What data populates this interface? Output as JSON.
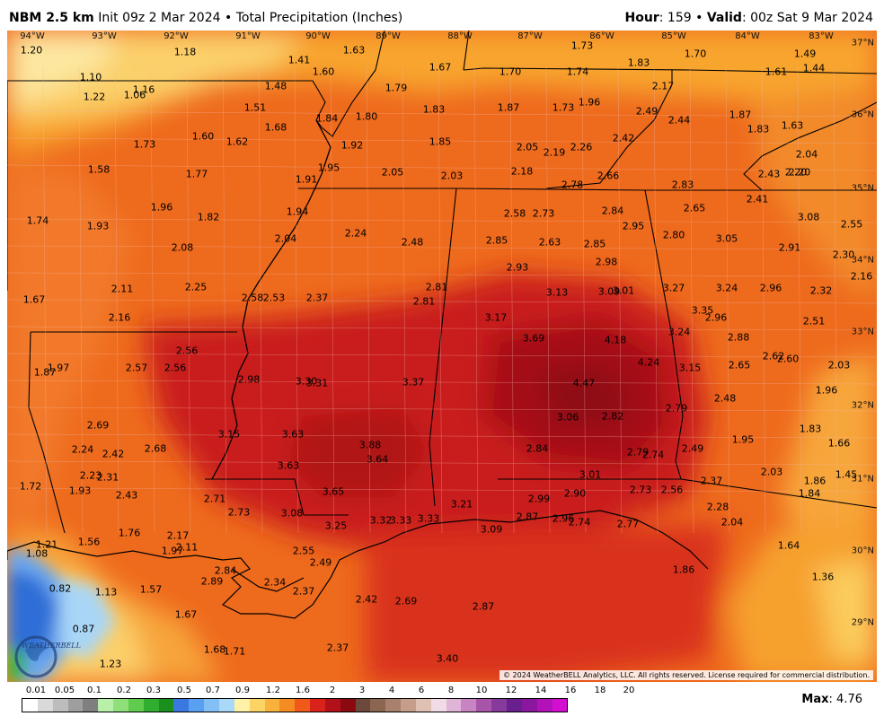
{
  "header": {
    "model": "NBM 2.5 km",
    "init": "Init 09z 2 Mar 2024",
    "separator": "•",
    "product": "Total Precipitation (Inches)",
    "hour_label": "Hour",
    "hour_value": ": 159",
    "valid_label": "Valid",
    "valid_value": ": 00z Sat 9 Mar 2024"
  },
  "map": {
    "longitude_labels": [
      "94°W",
      "93°W",
      "92°W",
      "91°W",
      "90°W",
      "89°W",
      "88°W",
      "87°W",
      "86°W",
      "85°W",
      "84°W",
      "83°W"
    ],
    "latitude_labels": [
      "37°N",
      "36°N",
      "35°N",
      "34°N",
      "33°N",
      "32°N",
      "31°N",
      "30°N",
      "29°N"
    ],
    "precip_values": [
      "1.20",
      "1.18",
      "1.41",
      "1.63",
      "1.67",
      "1.70",
      "1.73",
      "1.83",
      "1.70",
      "1.49",
      "1.44",
      "1.10",
      "1.22",
      "1.06",
      "1.16",
      "1.60",
      "1.48",
      "1.79",
      "1.74",
      "2.17",
      "1.61",
      "1.51",
      "1.68",
      "1.84",
      "1.80",
      "1.83",
      "1.87",
      "1.73",
      "1.96",
      "2.49",
      "2.44",
      "1.87",
      "1.83",
      "1.63",
      "1.73",
      "1.60",
      "1.62",
      "1.92",
      "1.85",
      "2.05",
      "2.19",
      "2.26",
      "2.42",
      "2.04",
      "1.58",
      "1.77",
      "1.95",
      "2.05",
      "2.03",
      "2.18",
      "2.66",
      "2.43",
      "2.20",
      "1.91",
      "2.78",
      "2.83",
      "2.41",
      "2.20",
      "1.74",
      "1.96",
      "1.82",
      "1.94",
      "2.58",
      "2.73",
      "2.84",
      "2.65",
      "3.08",
      "2.55",
      "1.93",
      "2.04",
      "2.24",
      "2.48",
      "2.85",
      "2.63",
      "2.85",
      "2.95",
      "2.80",
      "3.05",
      "2.91",
      "2.30",
      "2.08",
      "2.93",
      "2.98",
      "2.16",
      "2.11",
      "2.25",
      "2.81",
      "3.13",
      "3.09",
      "3.01",
      "3.27",
      "3.24",
      "2.96",
      "2.32",
      "1.67",
      "2.58",
      "2.53",
      "2.37",
      "2.81",
      "3.35",
      "2.96",
      "2.51",
      "2.16",
      "3.17",
      "3.69",
      "4.18",
      "3.24",
      "2.88",
      "2.56",
      "2.62",
      "2.60",
      "1.87",
      "1.97",
      "2.57",
      "2.56",
      "4.24",
      "3.15",
      "2.65",
      "2.03",
      "2.98",
      "3.30",
      "3.31",
      "3.37",
      "4.47",
      "2.48",
      "1.96",
      "3.06",
      "2.82",
      "2.79",
      "2.69",
      "3.15",
      "3.63",
      "1.83",
      "2.24",
      "2.42",
      "2.68",
      "3.88",
      "2.84",
      "2.79",
      "2.74",
      "2.49",
      "1.95",
      "1.66",
      "3.64",
      "2.23",
      "2.31",
      "3.63",
      "3.01",
      "2.03",
      "1.45",
      "1.72",
      "1.93",
      "2.43",
      "2.71",
      "3.65",
      "2.99",
      "2.90",
      "2.73",
      "2.56",
      "2.37",
      "1.86",
      "1.84",
      "2.73",
      "3.08",
      "3.21",
      "2.28",
      "1.76",
      "2.87",
      "2.96",
      "2.74",
      "2.77",
      "2.04",
      "1.21",
      "1.56",
      "2.17",
      "3.25",
      "3.32",
      "3.33",
      "3.33",
      "3.09",
      "1.08",
      "1.97",
      "2.11",
      "2.55",
      "1.64",
      "2.49",
      "1.86",
      "2.84",
      "1.36",
      "0.82",
      "1.13",
      "1.57",
      "2.89",
      "2.34",
      "2.37",
      "2.42",
      "2.69",
      "1.67",
      "2.87",
      "0.87",
      "1.68",
      "1.71",
      "2.37",
      "1.23",
      "3.40"
    ]
  },
  "legend": {
    "ticks": [
      "0.01",
      "0.05",
      "0.1",
      "0.2",
      "0.3",
      "0.5",
      "0.7",
      "0.9",
      "1.2",
      "1.6",
      "2",
      "3",
      "4",
      "6",
      "8",
      "10",
      "12",
      "14",
      "16",
      "18",
      "20"
    ],
    "colors": [
      "#ffffff",
      "#d9d9d9",
      "#bdbdbd",
      "#9e9e9e",
      "#7f7f7f",
      "#b9f0a9",
      "#8fe07a",
      "#5fcc4e",
      "#2fae2f",
      "#1a8f1e",
      "#3a78e0",
      "#5aa0f2",
      "#82bff5",
      "#a9d8f8",
      "#fff2a6",
      "#fbd465",
      "#f8b13a",
      "#f48c22",
      "#ef5a1a",
      "#d9231a",
      "#b2111a",
      "#8a0a10",
      "#6b4a3b",
      "#8c6551",
      "#a8806c",
      "#c59e8b",
      "#e1c0b4",
      "#f0dbe6",
      "#e0b4d6",
      "#c883c2",
      "#a854a8",
      "#863a9c",
      "#6a1f8f",
      "#8a179e",
      "#b212b8",
      "#d20ed0"
    ],
    "max_label": "Max",
    "max_value": ": 4.76"
  },
  "copyright": "© 2024 WeatherBELL Analytics, LLC. All rights reserved. License required for commercial distribution.",
  "logo_text": "WEATHERBELL"
}
